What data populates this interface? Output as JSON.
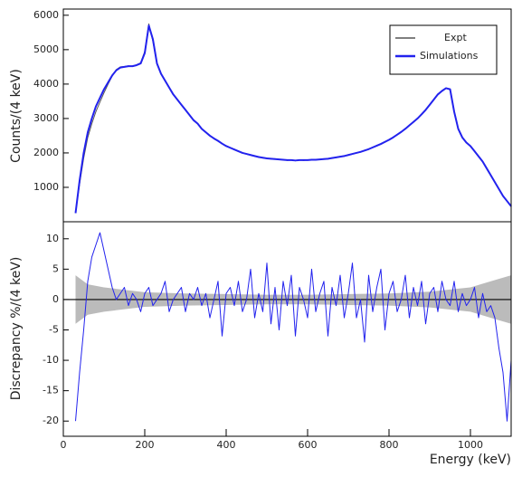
{
  "chart_data": [
    {
      "type": "line",
      "y_label": "Counts/(4 keV)",
      "xlim": [
        0,
        1100
      ],
      "ylim": [
        0,
        6180
      ],
      "yticks": [
        1000,
        2000,
        3000,
        4000,
        5000,
        6000
      ],
      "legend": "top-right",
      "x": [
        30,
        40,
        50,
        60,
        70,
        80,
        90,
        100,
        110,
        120,
        130,
        140,
        150,
        160,
        170,
        180,
        190,
        200,
        210,
        220,
        230,
        240,
        250,
        260,
        270,
        280,
        290,
        300,
        310,
        320,
        330,
        340,
        350,
        360,
        370,
        380,
        390,
        400,
        410,
        420,
        430,
        440,
        450,
        460,
        470,
        480,
        490,
        500,
        510,
        520,
        530,
        540,
        550,
        560,
        570,
        580,
        590,
        600,
        610,
        620,
        630,
        640,
        650,
        660,
        670,
        680,
        690,
        700,
        710,
        720,
        730,
        740,
        750,
        760,
        770,
        780,
        790,
        800,
        810,
        820,
        830,
        840,
        850,
        860,
        870,
        880,
        890,
        900,
        910,
        920,
        930,
        940,
        950,
        960,
        970,
        980,
        990,
        1000,
        1010,
        1020,
        1030,
        1040,
        1050,
        1060,
        1070,
        1080,
        1090,
        1100
      ],
      "series": [
        {
          "name": "Expt",
          "color": "#555555",
          "width": 1,
          "values": [
            250,
            1100,
            1850,
            2450,
            2850,
            3200,
            3480,
            3750,
            4000,
            4230,
            4420,
            4500,
            4510,
            4530,
            4510,
            4560,
            4620,
            4950,
            5750,
            5250,
            4580,
            4310,
            4090,
            3910,
            3690,
            3560,
            3390,
            3260,
            3090,
            2960,
            2840,
            2710,
            2590,
            2510,
            2410,
            2360,
            2260,
            2210,
            2140,
            2110,
            2040,
            2010,
            1960,
            1950,
            1900,
            1890,
            1850,
            1850,
            1820,
            1830,
            1800,
            1810,
            1780,
            1800,
            1770,
            1800,
            1780,
            1800,
            1790,
            1810,
            1800,
            1830,
            1820,
            1860,
            1860,
            1900,
            1900,
            1950,
            1960,
            2010,
            2020,
            2080,
            2100,
            2170,
            2200,
            2270,
            2310,
            2390,
            2440,
            2540,
            2600,
            2710,
            2790,
            2910,
            2990,
            3130,
            3240,
            3410,
            3540,
            3710,
            3790,
            3890,
            3830,
            3180,
            2710,
            2440,
            2310,
            2190,
            2060,
            1890,
            1760,
            1540,
            1360,
            1140,
            960,
            740,
            610,
            440
          ]
        },
        {
          "name": "Simulations",
          "color": "#2222ee",
          "width": 2,
          "values": [
            250,
            1200,
            2000,
            2600,
            3000,
            3350,
            3600,
            3850,
            4050,
            4250,
            4400,
            4480,
            4500,
            4520,
            4520,
            4550,
            4600,
            4900,
            5700,
            5300,
            4600,
            4300,
            4100,
            3900,
            3700,
            3550,
            3400,
            3250,
            3100,
            2950,
            2850,
            2700,
            2600,
            2500,
            2420,
            2350,
            2270,
            2200,
            2150,
            2100,
            2050,
            2000,
            1970,
            1940,
            1910,
            1880,
            1860,
            1840,
            1830,
            1820,
            1810,
            1800,
            1790,
            1790,
            1780,
            1790,
            1790,
            1790,
            1800,
            1800,
            1810,
            1820,
            1830,
            1850,
            1870,
            1890,
            1910,
            1940,
            1970,
            2000,
            2030,
            2070,
            2110,
            2160,
            2210,
            2260,
            2320,
            2380,
            2450,
            2530,
            2610,
            2700,
            2800,
            2900,
            3000,
            3120,
            3250,
            3400,
            3550,
            3700,
            3800,
            3880,
            3850,
            3200,
            2700,
            2450,
            2300,
            2200,
            2050,
            1900,
            1750,
            1550,
            1350,
            1150,
            950,
            750,
            600,
            450
          ]
        }
      ]
    },
    {
      "type": "line",
      "x_label": "Energy (keV)",
      "y_label": "Discrepancy %/(4 keV)",
      "xlim": [
        0,
        1100
      ],
      "ylim": [
        -22.5,
        12.8
      ],
      "xticks": [
        0,
        200,
        400,
        600,
        800,
        1000
      ],
      "yticks": [
        -20,
        -15,
        -10,
        -5,
        0,
        5,
        10
      ],
      "band": {
        "color": "#bbbbbb",
        "x": [
          30,
          60,
          100,
          200,
          300,
          400,
          500,
          600,
          700,
          800,
          900,
          1000,
          1050,
          1100
        ],
        "values": [
          4,
          2.5,
          2,
          1.2,
          1,
          0.9,
          0.8,
          0.8,
          0.9,
          1,
          1.3,
          2,
          3,
          4
        ]
      },
      "x": [
        30,
        40,
        50,
        60,
        70,
        80,
        90,
        100,
        110,
        120,
        130,
        140,
        150,
        160,
        170,
        180,
        190,
        200,
        210,
        220,
        230,
        240,
        250,
        260,
        270,
        280,
        290,
        300,
        310,
        320,
        330,
        340,
        350,
        360,
        370,
        380,
        390,
        400,
        410,
        420,
        430,
        440,
        450,
        460,
        470,
        480,
        490,
        500,
        510,
        520,
        530,
        540,
        550,
        560,
        570,
        580,
        590,
        600,
        610,
        620,
        630,
        640,
        650,
        660,
        670,
        680,
        690,
        700,
        710,
        720,
        730,
        740,
        750,
        760,
        770,
        780,
        790,
        800,
        810,
        820,
        830,
        840,
        850,
        860,
        870,
        880,
        890,
        900,
        910,
        920,
        930,
        940,
        950,
        960,
        970,
        980,
        990,
        1000,
        1010,
        1020,
        1030,
        1040,
        1050,
        1060,
        1070,
        1080,
        1090,
        1100
      ],
      "series": [
        {
          "color": "#2222ee",
          "width": 1,
          "values": [
            -20,
            -12,
            -5,
            3,
            7,
            9,
            11,
            8,
            5,
            2,
            0,
            1,
            2,
            -1,
            1,
            0,
            -2,
            1,
            2,
            -1,
            0,
            1,
            3,
            -2,
            0,
            1,
            2,
            -2,
            1,
            0,
            2,
            -1,
            1,
            -3,
            0,
            3,
            -6,
            1,
            2,
            -1,
            3,
            -2,
            0,
            5,
            -3,
            1,
            -2,
            6,
            -4,
            2,
            -5,
            3,
            -1,
            4,
            -6,
            2,
            0,
            -3,
            5,
            -2,
            1,
            3,
            -6,
            2,
            -1,
            4,
            -3,
            1,
            6,
            -3,
            0,
            -7,
            4,
            -2,
            2,
            5,
            -5,
            1,
            3,
            -2,
            0,
            4,
            -3,
            2,
            -1,
            3,
            -4,
            1,
            2,
            -2,
            3,
            0,
            -1,
            3,
            -2,
            1,
            -1,
            0,
            2,
            -3,
            1,
            -2,
            -1,
            -3,
            -8,
            -12,
            -20,
            -10
          ]
        }
      ]
    }
  ]
}
